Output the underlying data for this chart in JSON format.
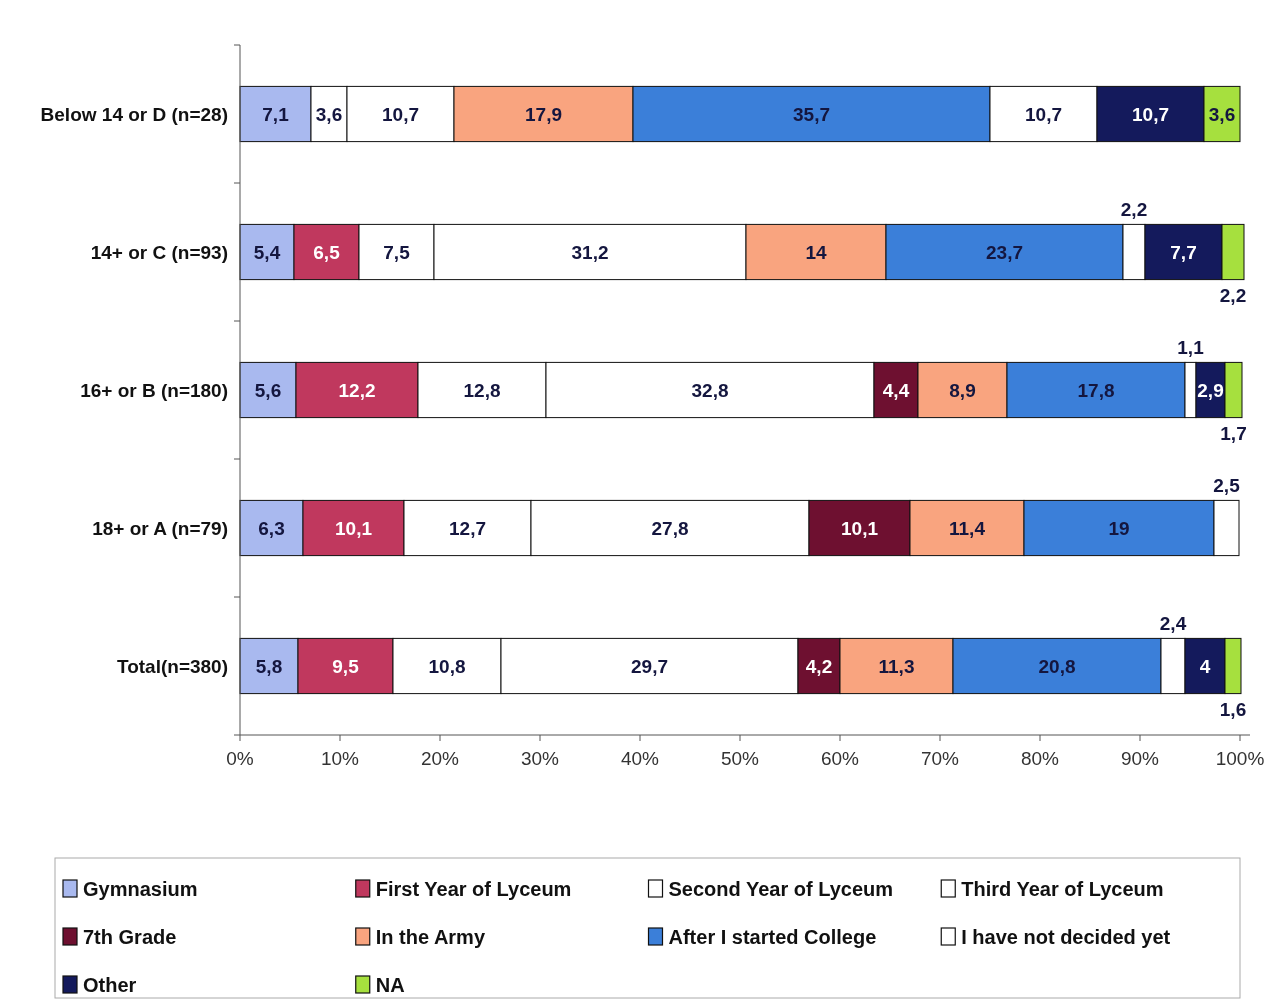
{
  "chart_data": {
    "type": "bar",
    "orientation": "horizontal",
    "stacked": true,
    "categories": [
      "Below 14 or D (n=28)",
      "14+ or C (n=93)",
      "16+ or B (n=180)",
      "18+ or A (n=79)",
      "Total(n=380)"
    ],
    "series": [
      {
        "name": "Gymnasium",
        "color": "#a9b9ef",
        "values": [
          7.1,
          5.4,
          5.6,
          6.3,
          5.8
        ],
        "value_labels": [
          "7,1",
          "5,4",
          "5,6",
          "6,3",
          "5,8"
        ]
      },
      {
        "name": "First Year of Lyceum",
        "color": "#c0385e",
        "values": [
          null,
          6.5,
          12.2,
          10.1,
          9.5
        ],
        "value_labels": [
          null,
          "6,5",
          "12,2",
          "10,1",
          "9,5"
        ]
      },
      {
        "name": "Second Year of Lyceum",
        "color": "#ffffff",
        "values": [
          3.6,
          7.5,
          12.8,
          12.7,
          10.8
        ],
        "value_labels": [
          "3,6",
          "7,5",
          "12,8",
          "12,7",
          "10,8"
        ]
      },
      {
        "name": "Third Year of Lyceum",
        "color": "#ffffff",
        "values": [
          10.7,
          31.2,
          32.8,
          27.8,
          29.7
        ],
        "value_labels": [
          "10,7",
          "31,2",
          "32,8",
          "27,8",
          "29,7"
        ]
      },
      {
        "name": "7th Grade",
        "color": "#6e1030",
        "values": [
          null,
          null,
          4.4,
          10.1,
          4.2
        ],
        "value_labels": [
          null,
          null,
          "4,4",
          "10,1",
          "4,2"
        ]
      },
      {
        "name": "In the Army",
        "color": "#f9a47f",
        "values": [
          17.9,
          14,
          8.9,
          11.4,
          11.3
        ],
        "value_labels": [
          "17,9",
          "14",
          "8,9",
          "11,4",
          "11,3"
        ]
      },
      {
        "name": "After I started College",
        "color": "#3b7fd9",
        "values": [
          35.7,
          23.7,
          17.8,
          19,
          20.8
        ],
        "value_labels": [
          "35,7",
          "23,7",
          "17,8",
          "19",
          "20,8"
        ]
      },
      {
        "name": "I have not decided yet",
        "color": "#ffffff",
        "values": [
          10.7,
          2.2,
          1.1,
          2.5,
          2.4
        ],
        "value_labels": [
          "10,7",
          "2,2",
          "1,1",
          "2,5",
          "2,4"
        ]
      },
      {
        "name": "Other",
        "color": "#141a5c",
        "values": [
          10.7,
          7.7,
          2.9,
          null,
          4
        ],
        "value_labels": [
          "10,7",
          "7,7",
          "2,9",
          null,
          "4"
        ]
      },
      {
        "name": "NA",
        "color": "#a6e03e",
        "values": [
          3.6,
          2.2,
          1.7,
          null,
          1.6
        ],
        "value_labels": [
          "3,6",
          "2,2",
          "1,7",
          null,
          "1,6"
        ]
      }
    ],
    "xlim": [
      0,
      101
    ],
    "xticks": [
      {
        "value": 0,
        "label": "0%"
      },
      {
        "value": 10,
        "label": "10%"
      },
      {
        "value": 20,
        "label": "20%"
      },
      {
        "value": 30,
        "label": "30%"
      },
      {
        "value": 40,
        "label": "40%"
      },
      {
        "value": 50,
        "label": "50%"
      },
      {
        "value": 60,
        "label": "60%"
      },
      {
        "value": 70,
        "label": "70%"
      },
      {
        "value": 80,
        "label": "80%"
      },
      {
        "value": 90,
        "label": "90%"
      },
      {
        "value": 100,
        "label": "100%"
      }
    ],
    "legend": "bottom"
  }
}
